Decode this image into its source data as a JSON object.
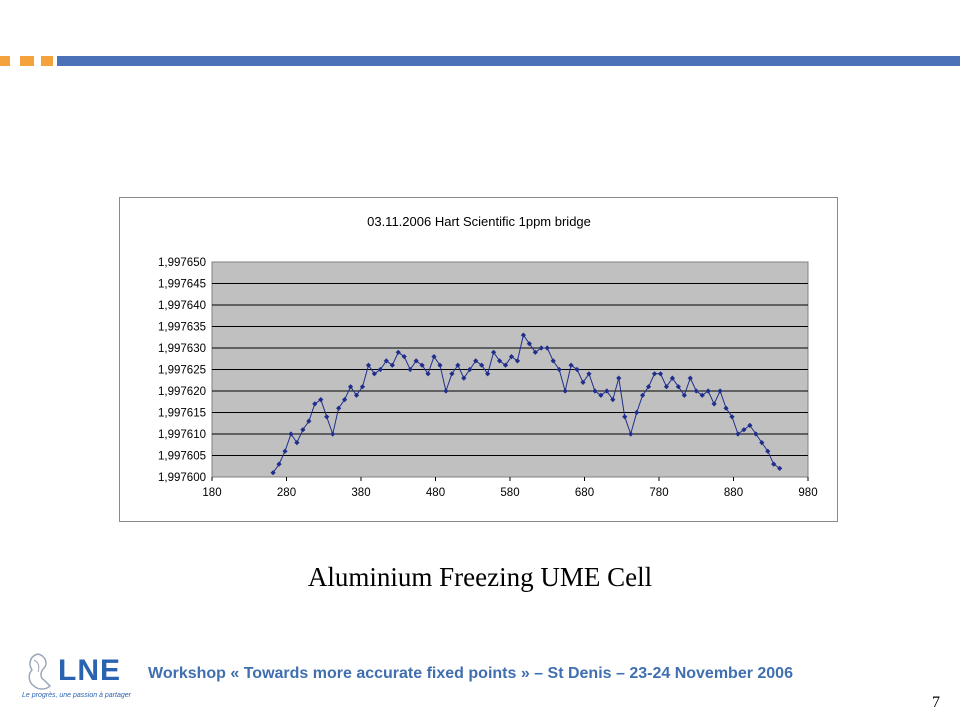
{
  "header": {
    "accent_color": "#f4a23c",
    "bar_color": "#4b72b8"
  },
  "chart_data": {
    "type": "line",
    "title": "03.11.2006 Hart Scientific 1ppm bridge",
    "xlabel": "",
    "ylabel": "",
    "xlim": [
      180,
      980
    ],
    "ylim": [
      1.9976,
      1.99765
    ],
    "x_ticks": [
      "180",
      "280",
      "380",
      "480",
      "580",
      "680",
      "780",
      "880",
      "980"
    ],
    "y_ticks": [
      "1,997600",
      "1,997605",
      "1,997610",
      "1,997615",
      "1,997620",
      "1,997625",
      "1,997630",
      "1,997635",
      "1,997640",
      "1,997645",
      "1,997650"
    ],
    "grid": true,
    "legend": "none",
    "marker": "diamond",
    "series_color": "#1f2e8c",
    "plot_background": "#c0c0c0",
    "series": [
      {
        "x": [
          262,
          270,
          278,
          286,
          294,
          302,
          310,
          318,
          326,
          334,
          342,
          350,
          358,
          366,
          374,
          382,
          390,
          398,
          406,
          414,
          422,
          430,
          438,
          446,
          454,
          462,
          470,
          478,
          486,
          494,
          502,
          510,
          518,
          526,
          534,
          542,
          550,
          558,
          566,
          574,
          582,
          590,
          598,
          606,
          614,
          622,
          630,
          638,
          646,
          654,
          662,
          670,
          678,
          686,
          694,
          702,
          710,
          718,
          726,
          734,
          742,
          750,
          758,
          766,
          774,
          782,
          790,
          798,
          806,
          814,
          822,
          830,
          838,
          846,
          854,
          862,
          870,
          878,
          886,
          894,
          902,
          910,
          918,
          926,
          934,
          942
        ],
        "y": [
          1.997601,
          1.997603,
          1.997606,
          1.99761,
          1.997608,
          1.997611,
          1.997613,
          1.997617,
          1.997618,
          1.997614,
          1.99761,
          1.997616,
          1.997618,
          1.997621,
          1.997619,
          1.997621,
          1.997626,
          1.997624,
          1.997625,
          1.997627,
          1.997626,
          1.997629,
          1.997628,
          1.997625,
          1.997627,
          1.997626,
          1.997624,
          1.997628,
          1.997626,
          1.99762,
          1.997624,
          1.997626,
          1.997623,
          1.997625,
          1.997627,
          1.997626,
          1.997624,
          1.997629,
          1.997627,
          1.997626,
          1.997628,
          1.997627,
          1.997633,
          1.997631,
          1.997629,
          1.99763,
          1.99763,
          1.997627,
          1.997625,
          1.99762,
          1.997626,
          1.997625,
          1.997622,
          1.997624,
          1.99762,
          1.997619,
          1.99762,
          1.997618,
          1.997623,
          1.997614,
          1.99761,
          1.997615,
          1.997619,
          1.997621,
          1.997624,
          1.997624,
          1.997621,
          1.997623,
          1.997621,
          1.997619,
          1.997623,
          1.99762,
          1.997619,
          1.99762,
          1.997617,
          1.99762,
          1.997616,
          1.997614,
          1.99761,
          1.997611,
          1.997612,
          1.99761,
          1.997608,
          1.997606,
          1.997603,
          1.997602
        ]
      }
    ]
  },
  "caption": "Aluminium Freezing UME Cell",
  "footer": {
    "text": "Workshop « Towards more accurate fixed points » – St Denis – 23-24 November 2006",
    "page_number": "7",
    "logo_text": "LNE",
    "logo_tagline": "Le progrès, une passion à partager"
  }
}
